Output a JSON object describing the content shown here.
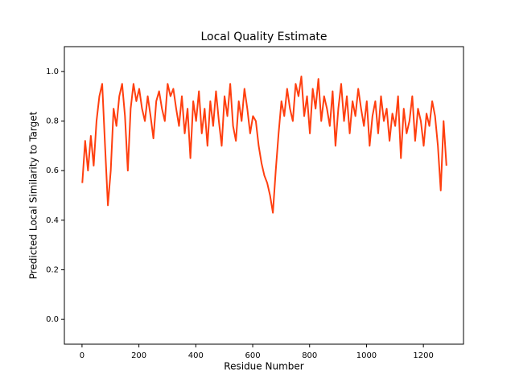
{
  "chart_data": {
    "type": "line",
    "title": "Local Quality Estimate",
    "xlabel": "Residue Number",
    "ylabel": "Predicted Local Similarity to Target",
    "xlim": [
      -62,
      1341
    ],
    "ylim": [
      -0.1,
      1.1
    ],
    "xticks": [
      0,
      200,
      400,
      600,
      800,
      1000,
      1200
    ],
    "yticks": [
      {
        "value": 0,
        "label": "0.0"
      },
      0.2,
      0.4,
      0.6,
      0.8,
      {
        "value": 1,
        "label": "1.0"
      }
    ],
    "series": [
      {
        "color": "#ff3f0f",
        "x": [
          1,
          11,
          21,
          31,
          41,
          51,
          61,
          71,
          81,
          91,
          101,
          111,
          121,
          131,
          141,
          151,
          161,
          171,
          181,
          191,
          201,
          211,
          221,
          231,
          241,
          251,
          261,
          271,
          281,
          291,
          301,
          311,
          321,
          331,
          341,
          351,
          361,
          371,
          381,
          391,
          401,
          411,
          421,
          431,
          441,
          451,
          461,
          471,
          481,
          491,
          501,
          511,
          521,
          531,
          541,
          551,
          561,
          571,
          581,
          591,
          601,
          611,
          621,
          631,
          641,
          651,
          661,
          671,
          681,
          691,
          701,
          711,
          721,
          731,
          741,
          751,
          761,
          771,
          781,
          791,
          801,
          811,
          821,
          831,
          841,
          851,
          861,
          871,
          881,
          891,
          901,
          911,
          921,
          931,
          941,
          951,
          961,
          971,
          981,
          991,
          1001,
          1011,
          1021,
          1031,
          1041,
          1051,
          1061,
          1071,
          1081,
          1091,
          1101,
          1111,
          1121,
          1131,
          1141,
          1151,
          1161,
          1171,
          1181,
          1191,
          1201,
          1211,
          1221,
          1231,
          1241,
          1251,
          1261,
          1271,
          1281
        ],
        "values": [
          0.55,
          0.72,
          0.6,
          0.74,
          0.62,
          0.8,
          0.9,
          0.95,
          0.7,
          0.46,
          0.6,
          0.85,
          0.78,
          0.9,
          0.95,
          0.82,
          0.6,
          0.85,
          0.95,
          0.88,
          0.93,
          0.85,
          0.8,
          0.9,
          0.82,
          0.73,
          0.88,
          0.92,
          0.85,
          0.8,
          0.95,
          0.9,
          0.93,
          0.85,
          0.78,
          0.9,
          0.75,
          0.85,
          0.65,
          0.88,
          0.8,
          0.92,
          0.75,
          0.85,
          0.7,
          0.88,
          0.78,
          0.92,
          0.8,
          0.7,
          0.9,
          0.82,
          0.95,
          0.78,
          0.72,
          0.88,
          0.8,
          0.93,
          0.85,
          0.75,
          0.82,
          0.8,
          0.7,
          0.63,
          0.58,
          0.55,
          0.5,
          0.43,
          0.6,
          0.75,
          0.88,
          0.82,
          0.93,
          0.85,
          0.8,
          0.95,
          0.9,
          0.98,
          0.82,
          0.9,
          0.75,
          0.93,
          0.85,
          0.97,
          0.8,
          0.9,
          0.85,
          0.78,
          0.92,
          0.7,
          0.85,
          0.95,
          0.8,
          0.9,
          0.75,
          0.88,
          0.82,
          0.93,
          0.85,
          0.78,
          0.88,
          0.7,
          0.82,
          0.88,
          0.75,
          0.9,
          0.8,
          0.85,
          0.72,
          0.83,
          0.78,
          0.9,
          0.65,
          0.85,
          0.75,
          0.8,
          0.9,
          0.72,
          0.85,
          0.8,
          0.7,
          0.83,
          0.78,
          0.88,
          0.82,
          0.7,
          0.52,
          0.8,
          0.62
        ]
      }
    ]
  }
}
